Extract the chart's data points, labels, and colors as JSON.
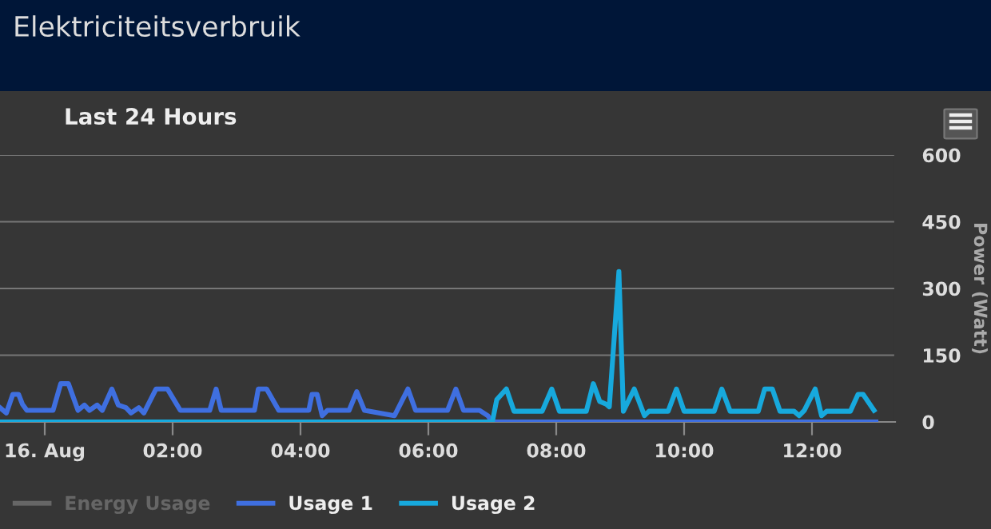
{
  "chart_data": {
    "type": "line",
    "title": "Elektriciteitsverbruik",
    "subtitle": "Last 24 Hours",
    "ylabel": "Power (Watt)",
    "xlim": [
      -0.7,
      13.3
    ],
    "xticks": [
      {
        "value": 0,
        "label": "16. Aug"
      },
      {
        "value": 2,
        "label": "02:00"
      },
      {
        "value": 4,
        "label": "04:00"
      },
      {
        "value": 6,
        "label": "06:00"
      },
      {
        "value": 8,
        "label": "08:00"
      },
      {
        "value": 10,
        "label": "10:00"
      },
      {
        "value": 12,
        "label": "12:00"
      }
    ],
    "ylim": [
      0,
      600
    ],
    "yticks": [
      0,
      150,
      300,
      450,
      600
    ],
    "grid": "y",
    "legend": "bottom left",
    "marker": "none",
    "line_style": "solid",
    "series": [
      {
        "name": "Energy Usage",
        "color": "#666666"
      },
      {
        "name": "Usage 1",
        "color": "#3f6fe0",
        "x": [
          -0.7,
          -0.6,
          -0.5,
          -0.41,
          -0.35,
          -0.28,
          0.13,
          0.25,
          0.37,
          0.52,
          0.62,
          0.7,
          0.82,
          0.9,
          1.05,
          1.15,
          1.27,
          1.35,
          1.47,
          1.55,
          1.74,
          1.92,
          2.12,
          2.58,
          2.68,
          2.76,
          3.28,
          3.34,
          3.47,
          3.66,
          4.13,
          4.18,
          4.26,
          4.34,
          4.42,
          4.76,
          4.88,
          5.0,
          5.47,
          5.68,
          5.8,
          6.3,
          6.43,
          6.55,
          6.8,
          6.93,
          7.0,
          13.0
        ],
        "values": [
          32,
          20,
          62,
          62,
          40,
          26,
          26,
          86,
          86,
          26,
          38,
          26,
          38,
          26,
          74,
          38,
          32,
          20,
          32,
          20,
          74,
          74,
          26,
          26,
          74,
          26,
          26,
          74,
          74,
          26,
          26,
          62,
          62,
          14,
          26,
          26,
          68,
          26,
          14,
          74,
          26,
          26,
          74,
          26,
          26,
          14,
          0,
          0
        ]
      },
      {
        "name": "Usage 2",
        "color": "#17a9dd",
        "x": [
          -0.7,
          6.9,
          7.0,
          7.07,
          7.22,
          7.34,
          7.78,
          7.93,
          8.05,
          8.47,
          8.58,
          8.68,
          8.78,
          8.83,
          8.98,
          9.05,
          9.22,
          9.38,
          9.45,
          9.75,
          9.88,
          10.0,
          10.47,
          10.59,
          10.72,
          11.16,
          11.26,
          11.38,
          11.5,
          11.72,
          11.8,
          11.88,
          12.05,
          12.15,
          12.23,
          12.6,
          12.72,
          12.8,
          12.97
        ],
        "values": [
          0,
          0,
          0,
          50,
          74,
          24,
          24,
          74,
          24,
          24,
          86,
          46,
          40,
          34,
          338,
          24,
          74,
          14,
          24,
          24,
          74,
          24,
          24,
          74,
          24,
          24,
          74,
          74,
          24,
          24,
          14,
          26,
          74,
          14,
          24,
          24,
          62,
          62,
          26
        ]
      }
    ]
  }
}
